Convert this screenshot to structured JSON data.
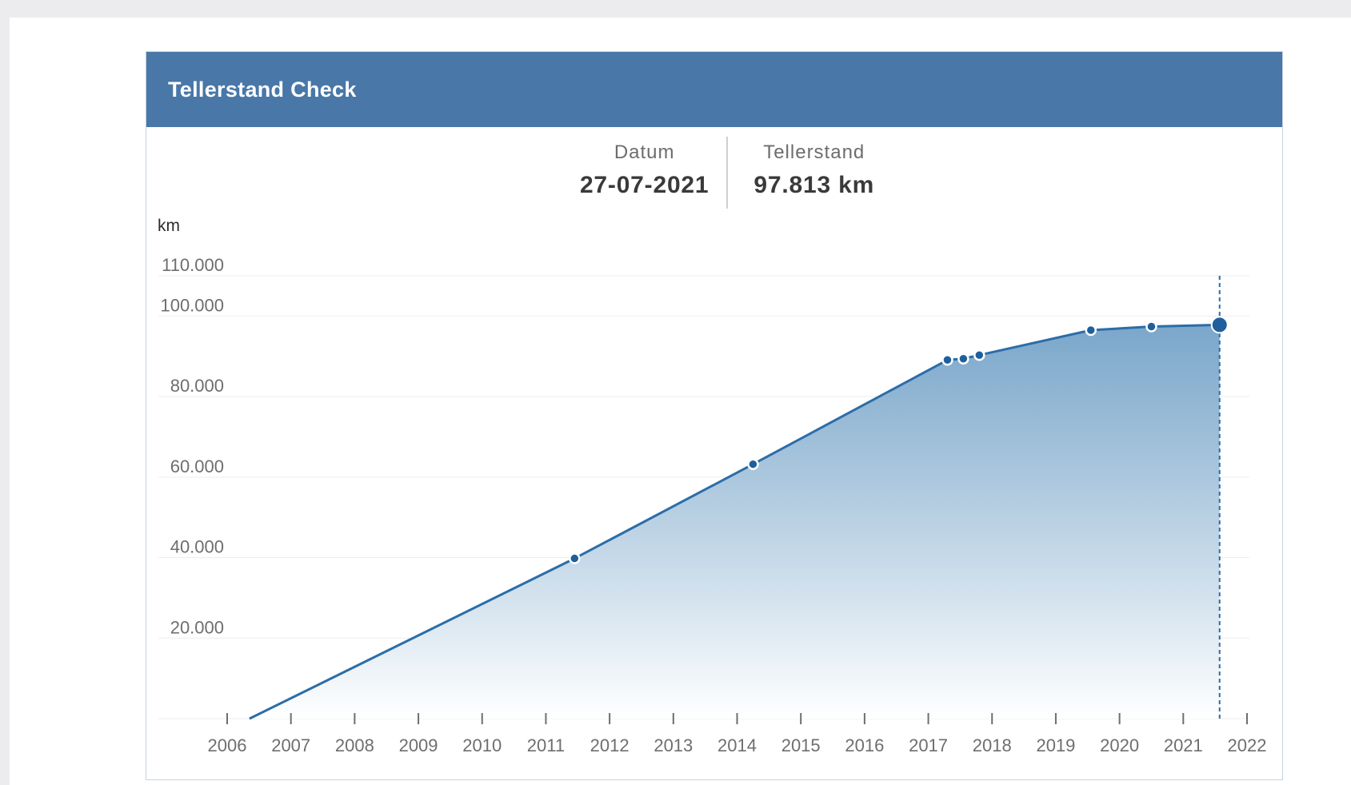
{
  "header": {
    "title": "Tellerstand Check"
  },
  "readout": {
    "date_label": "Datum",
    "date_value": "27-07-2021",
    "mileage_label": "Tellerstand",
    "mileage_value": "97.813 km"
  },
  "colors": {
    "header_bg": "#4877a8",
    "line": "#2b6da8",
    "area_top": "#6f9fc6",
    "area_bottom": "#ffffff",
    "marker": "#1f5f9c",
    "grid": "#eeeeee"
  },
  "chart_data": {
    "type": "area",
    "title": "",
    "xlabel": "",
    "ylabel": "km",
    "x_ticks": [
      "2006",
      "2007",
      "2008",
      "2009",
      "2010",
      "2011",
      "2012",
      "2013",
      "2014",
      "2015",
      "2016",
      "2017",
      "2018",
      "2019",
      "2020",
      "2021",
      "2022"
    ],
    "y_ticks": [
      "20.000",
      "40.000",
      "60.000",
      "80.000",
      "100.000",
      "110.000"
    ],
    "y_tick_values": [
      20000,
      40000,
      60000,
      80000,
      100000,
      110000
    ],
    "xlim": [
      2006,
      2022
    ],
    "ylim": [
      0,
      110000
    ],
    "grid": true,
    "series": [
      {
        "points": [
          {
            "x": 2006.35,
            "y": 0,
            "marker": false
          },
          {
            "x": 2011.45,
            "y": 39800,
            "marker": true
          },
          {
            "x": 2014.25,
            "y": 63200,
            "marker": true
          },
          {
            "x": 2017.3,
            "y": 89100,
            "marker": true
          },
          {
            "x": 2017.55,
            "y": 89400,
            "marker": true
          },
          {
            "x": 2017.8,
            "y": 90300,
            "marker": true
          },
          {
            "x": 2019.55,
            "y": 96500,
            "marker": true
          },
          {
            "x": 2020.5,
            "y": 97400,
            "marker": true
          },
          {
            "x": 2021.57,
            "y": 97813,
            "marker": true,
            "highlight": true
          }
        ]
      }
    ],
    "highlight": {
      "x": 2021.57,
      "date": "27-07-2021",
      "y": 97813
    }
  }
}
